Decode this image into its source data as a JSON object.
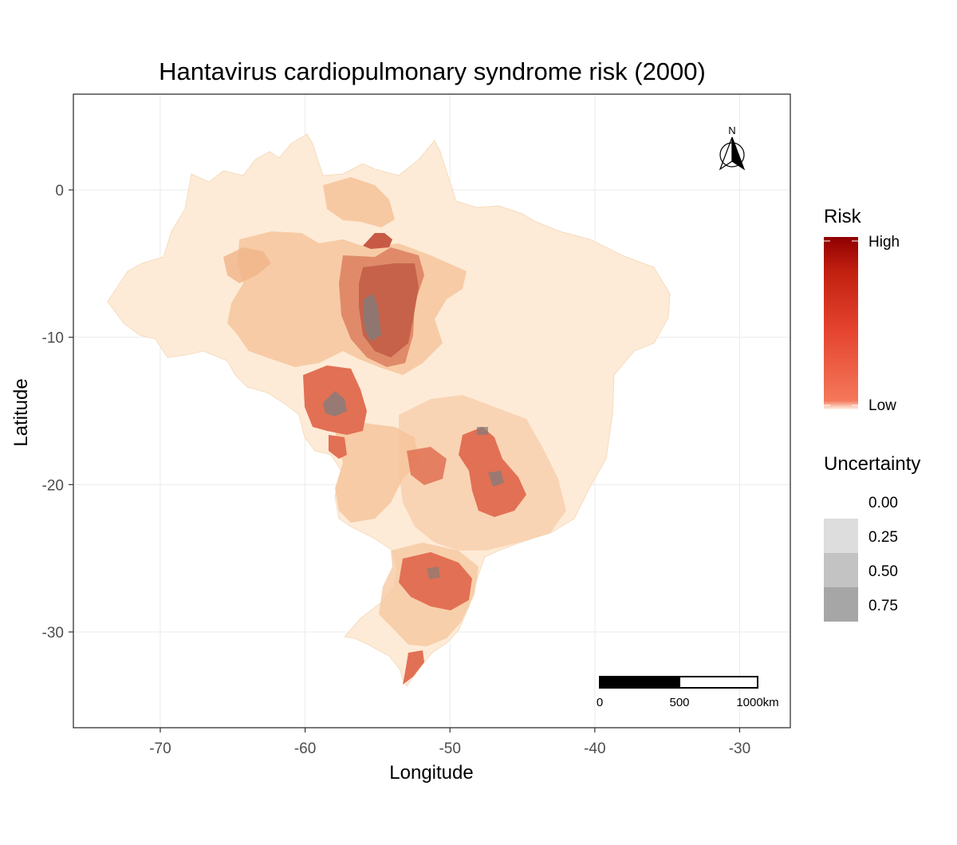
{
  "title": "Hantavirus cardiopulmonary syndrome risk (2000)",
  "axes": {
    "xlabel": "Longitude",
    "ylabel": "Latitude",
    "x_ticks": [
      -70,
      -60,
      -50,
      -40,
      -30
    ],
    "y_ticks": [
      0,
      -10,
      -20,
      -30
    ],
    "x_tick_labels": [
      "-70",
      "-60",
      "-50",
      "-40",
      "-30"
    ],
    "y_tick_labels": [
      "0",
      "-10",
      "-20",
      "-30"
    ]
  },
  "legend": {
    "risk_title": "Risk",
    "risk_high": "High",
    "risk_low": "Low",
    "risk_colors": [
      "#fff3e6",
      "#f4785a",
      "#e54530",
      "#c22010",
      "#8f0000"
    ],
    "uncertainty_title": "Uncertainty",
    "uncertainty_levels": [
      "0.00",
      "0.25",
      "0.50",
      "0.75"
    ],
    "uncertainty_colors": [
      "#ffffff",
      "#dddddd",
      "#c3c3c3",
      "#a6a6a6"
    ]
  },
  "north_arrow": {
    "label": "N"
  },
  "scale_bar": {
    "labels": [
      "0",
      "500",
      "1000km"
    ]
  },
  "map": {
    "region": "Brazil municipalities",
    "xlim": [
      -76,
      -26.5
    ],
    "ylim": [
      -36.5,
      6.5
    ],
    "base_colors": {
      "light": "#fdebd7",
      "orange": "#f6c59c",
      "dark": "#e08a6a",
      "high": "#c85a45"
    }
  }
}
